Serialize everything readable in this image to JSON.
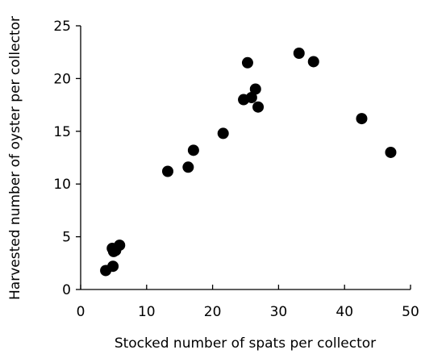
{
  "chart_data": {
    "type": "scatter",
    "title": "",
    "xlabel": "Stocked number of spats per collector",
    "ylabel": "Harvested number of oyster per collector",
    "xlim": [
      0,
      50
    ],
    "ylim": [
      0,
      25
    ],
    "xticks": [
      "0",
      "10",
      "20",
      "30",
      "40",
      "50"
    ],
    "yticks": [
      "0",
      "5",
      "10",
      "15",
      "20",
      "25"
    ],
    "grid": false,
    "legend": "none",
    "marker_color": "#000000",
    "series": [
      {
        "points": [
          [
            3.8,
            1.8
          ],
          [
            4.9,
            2.2
          ],
          [
            4.8,
            3.9
          ],
          [
            5.0,
            3.6
          ],
          [
            5.3,
            3.7
          ],
          [
            5.9,
            4.2
          ],
          [
            13.2,
            11.2
          ],
          [
            16.3,
            11.6
          ],
          [
            17.1,
            13.2
          ],
          [
            21.6,
            14.8
          ],
          [
            24.7,
            18.0
          ],
          [
            25.3,
            21.5
          ],
          [
            25.9,
            18.2
          ],
          [
            26.5,
            19.0
          ],
          [
            26.9,
            17.3
          ],
          [
            33.1,
            22.4
          ],
          [
            35.3,
            21.6
          ],
          [
            42.6,
            16.2
          ],
          [
            47.0,
            13.0
          ]
        ]
      }
    ]
  }
}
